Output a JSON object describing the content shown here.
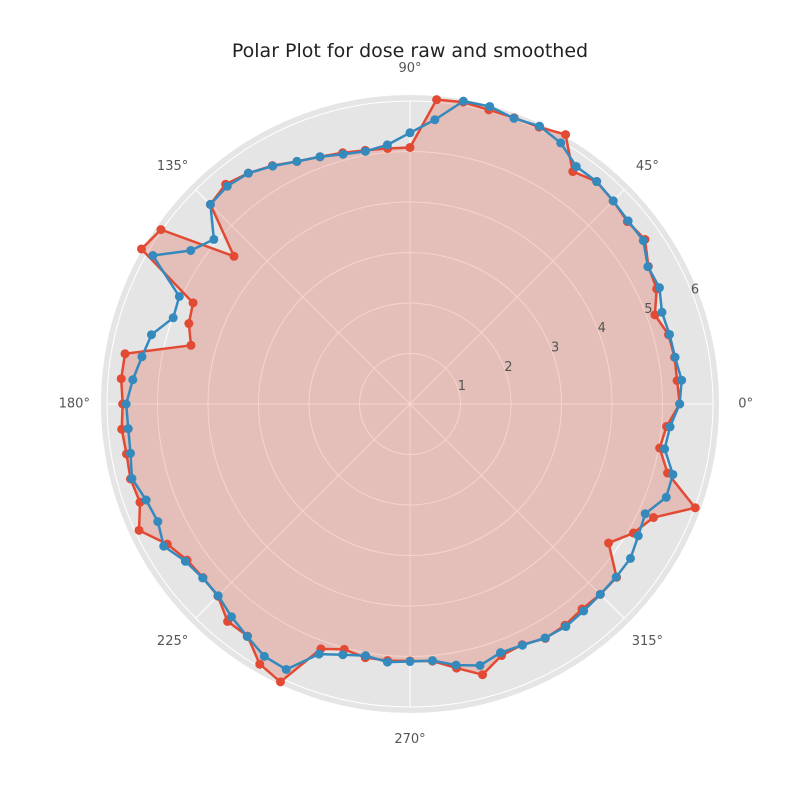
{
  "chart_data": {
    "type": "polar-line",
    "title": "Polar Plot for dose raw and smoothed",
    "angle_ticks": [
      "0°",
      "45°",
      "90°",
      "135°",
      "180°",
      "225°",
      "270°",
      "315°"
    ],
    "angle_tick_degrees": [
      0,
      45,
      90,
      135,
      180,
      225,
      270,
      315
    ],
    "radial_ticks": [
      "1",
      "2",
      "3",
      "4",
      "5",
      "6"
    ],
    "radial_tick_values": [
      1,
      2,
      3,
      4,
      5,
      6
    ],
    "rlim": [
      0,
      6
    ],
    "radial_label_angle_deg": 22.5,
    "grid": true,
    "theta_deg": [
      0,
      5,
      10,
      15,
      20,
      25,
      30,
      35,
      40,
      45,
      50,
      55,
      60,
      65,
      70,
      75,
      80,
      85,
      90,
      95,
      100,
      105,
      110,
      115,
      120,
      125,
      130,
      135,
      140,
      145,
      150,
      155,
      160,
      165,
      170,
      175,
      180,
      185,
      190,
      195,
      200,
      205,
      210,
      215,
      220,
      225,
      230,
      235,
      240,
      245,
      250,
      255,
      260,
      265,
      270,
      275,
      280,
      285,
      290,
      295,
      300,
      305,
      310,
      315,
      320,
      325,
      330,
      335,
      340,
      345,
      350,
      355
    ],
    "series": [
      {
        "color": "#E24A33",
        "fill": true,
        "values": [
          5.34,
          5.31,
          5.32,
          5.3,
          5.16,
          5.39,
          5.45,
          5.68,
          5.62,
          5.69,
          5.75,
          5.62,
          6.16,
          6.05,
          6.03,
          6.03,
          6.07,
          6.05,
          5.08,
          5.08,
          5.1,
          5.15,
          5.21,
          5.3,
          5.45,
          5.58,
          5.68,
          5.59,
          4.55,
          6.02,
          6.14,
          4.74,
          4.66,
          4.49,
          5.73,
          5.74,
          5.69,
          5.73,
          5.7,
          5.73,
          5.69,
          5.92,
          5.55,
          5.39,
          5.35,
          5.38,
          5.62,
          5.61,
          5.95,
          6.07,
          5.16,
          5.03,
          5.1,
          5.1,
          5.09,
          5.11,
          5.31,
          5.55,
          5.3,
          5.26,
          5.36,
          5.35,
          5.3,
          5.33,
          5.34,
          4.8,
          5.11,
          5.32,
          6.01,
          5.28,
          5.02,
          5.1
        ]
      },
      {
        "color": "#348ABD",
        "fill": false,
        "values": [
          5.34,
          5.4,
          5.33,
          5.32,
          5.31,
          5.45,
          5.44,
          5.64,
          5.64,
          5.69,
          5.75,
          5.74,
          5.97,
          6.07,
          6.02,
          6.1,
          6.09,
          5.65,
          5.37,
          5.15,
          5.08,
          5.12,
          5.21,
          5.3,
          5.44,
          5.58,
          5.63,
          5.59,
          5.07,
          5.3,
          5.88,
          5.04,
          4.99,
          5.3,
          5.39,
          5.51,
          5.62,
          5.6,
          5.62,
          5.7,
          5.56,
          5.51,
          5.63,
          5.43,
          5.36,
          5.37,
          5.5,
          5.62,
          5.77,
          5.8,
          5.27,
          5.14,
          5.06,
          5.13,
          5.1,
          5.1,
          5.25,
          5.36,
          5.24,
          5.27,
          5.35,
          5.38,
          5.35,
          5.33,
          5.33,
          5.33,
          5.22,
          5.14,
          5.4,
          5.39,
          5.12,
          5.17
        ]
      }
    ]
  }
}
